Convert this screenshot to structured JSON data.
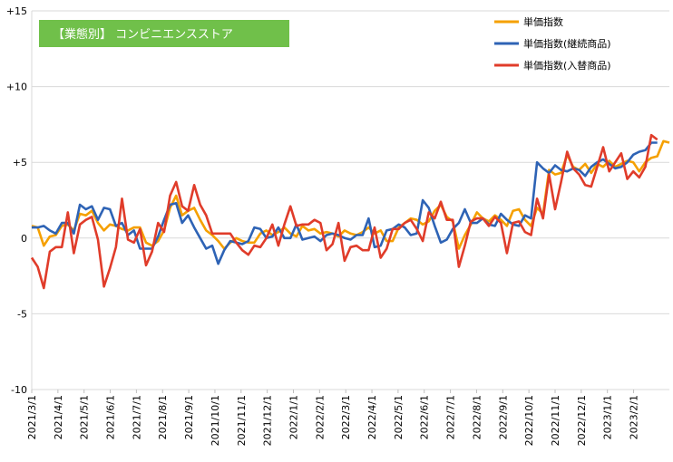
{
  "chart_data": {
    "type": "line",
    "title": "【業態別】 コンビニエンスストア",
    "title_bg": "#70c04a",
    "xlabel": "",
    "ylabel": "",
    "ylim": [
      -10,
      15
    ],
    "yticks": [
      -10,
      -5,
      0,
      5,
      10,
      15
    ],
    "ytick_labels": [
      "-10",
      "-5",
      "0",
      "+5",
      "+10",
      "+15"
    ],
    "grid": "horizontal",
    "legend_position": "top-right",
    "x_tick_labels": [
      "2021/3/1",
      "2021/4/1",
      "2021/5/1",
      "2021/6/1",
      "2021/7/1",
      "2021/8/1",
      "2021/9/1",
      "2021/10/1",
      "2021/11/1",
      "2021/12/1",
      "2022/1/1",
      "2022/2/1",
      "2022/3/1",
      "2022/4/1",
      "2022/5/1",
      "2022/6/1",
      "2022/7/1",
      "2022/8/1",
      "2022/9/1",
      "2022/10/1",
      "2022/11/1",
      "2022/12/1",
      "2023/1/1",
      "2023/2/1"
    ],
    "points_per_month": 4.35,
    "series": [
      {
        "name": "単価指数",
        "color": "#f5a000",
        "values": [
          0.8,
          0.7,
          -0.5,
          0.1,
          0.2,
          0.8,
          0.9,
          0.5,
          1.6,
          1.5,
          1.8,
          1.0,
          0.5,
          0.9,
          0.8,
          0.6,
          0.5,
          0.7,
          0.7,
          -0.3,
          -0.5,
          -0.2,
          0.5,
          2.0,
          2.8,
          1.5,
          1.8,
          2.0,
          1.2,
          0.5,
          0.2,
          -0.2,
          -0.7,
          -0.3,
          0.0,
          -0.2,
          -0.3,
          -0.3,
          0.3,
          0.5,
          0.2,
          0.4,
          0.7,
          0.3,
          0.1,
          0.8,
          0.5,
          0.6,
          0.3,
          0.4,
          0.3,
          0.1,
          0.5,
          0.3,
          0.2,
          0.4,
          0.7,
          0.3,
          0.5,
          -0.2,
          -0.2,
          0.7,
          1.0,
          1.3,
          1.2,
          0.9,
          1.1,
          1.8,
          2.2,
          1.4,
          1.1,
          -0.7,
          0.2,
          0.9,
          1.7,
          1.3,
          1.1,
          1.5,
          1.2,
          0.8,
          1.8,
          1.9,
          1.2,
          0.8,
          2.0,
          1.6,
          4.5,
          4.2,
          4.3,
          5.5,
          4.7,
          4.5,
          4.9,
          4.3,
          4.9,
          4.7,
          5.1,
          4.7,
          4.9,
          5.1,
          5.0,
          4.4,
          5.0,
          5.3,
          5.4,
          6.4,
          6.3
        ]
      },
      {
        "name": "単価指数(継続商品)",
        "color": "#2e63b5",
        "values": [
          0.7,
          0.7,
          0.8,
          0.5,
          0.3,
          1.0,
          1.0,
          0.3,
          2.2,
          1.9,
          2.1,
          1.2,
          2.0,
          1.9,
          0.8,
          1.0,
          0.2,
          0.5,
          -0.7,
          -0.7,
          -0.7,
          0.1,
          1.2,
          2.2,
          2.3,
          1.0,
          1.5,
          0.7,
          0.0,
          -0.7,
          -0.5,
          -1.7,
          -0.8,
          -0.2,
          -0.3,
          -0.4,
          -0.2,
          0.7,
          0.6,
          0.0,
          0.1,
          0.7,
          0.0,
          0.0,
          0.9,
          -0.1,
          0.0,
          0.1,
          -0.2,
          0.2,
          0.3,
          0.2,
          0.0,
          -0.1,
          0.2,
          0.2,
          1.3,
          -0.6,
          -0.5,
          0.5,
          0.6,
          0.9,
          0.7,
          0.2,
          0.3,
          2.5,
          2.0,
          0.8,
          -0.3,
          -0.1,
          0.6,
          1.0,
          1.9,
          1.0,
          1.0,
          1.3,
          0.9,
          0.8,
          1.6,
          1.2,
          0.9,
          0.8,
          1.5,
          1.3,
          5.0,
          4.6,
          4.3,
          4.8,
          4.5,
          4.4,
          4.6,
          4.5,
          4.1,
          4.7,
          5.0,
          5.2,
          4.9,
          4.6,
          4.7,
          5.0,
          5.5,
          5.7,
          5.8,
          6.3,
          6.3
        ]
      },
      {
        "name": "単価指数(入替商品)",
        "color": "#e03c2a",
        "values": [
          -1.3,
          -1.9,
          -3.3,
          -0.9,
          -0.6,
          -0.6,
          1.7,
          -1.0,
          0.9,
          1.2,
          1.4,
          -0.1,
          -3.2,
          -2.0,
          -0.6,
          2.6,
          -0.1,
          -0.3,
          0.6,
          -1.8,
          -0.9,
          1.0,
          0.4,
          2.8,
          3.7,
          2.1,
          1.8,
          3.5,
          2.2,
          1.5,
          0.3,
          0.3,
          0.3,
          0.3,
          -0.3,
          -0.8,
          -1.1,
          -0.5,
          -0.6,
          0.0,
          0.9,
          -0.5,
          0.9,
          2.1,
          0.8,
          0.9,
          0.9,
          1.2,
          1.0,
          -0.8,
          -0.4,
          1.0,
          -1.5,
          -0.6,
          -0.5,
          -0.8,
          -0.8,
          0.7,
          -1.3,
          -0.7,
          0.6,
          0.6,
          1.0,
          1.2,
          0.6,
          -0.2,
          1.7,
          1.3,
          2.4,
          1.2,
          1.2,
          -1.9,
          -0.5,
          1.1,
          1.3,
          1.3,
          0.8,
          1.4,
          1.0,
          -1.0,
          1.0,
          1.1,
          0.4,
          0.2,
          2.6,
          1.3,
          4.2,
          1.9,
          3.7,
          5.7,
          4.6,
          4.2,
          3.5,
          3.4,
          4.7,
          6.0,
          4.4,
          5.0,
          5.6,
          3.9,
          4.4,
          4.0,
          4.7,
          6.8,
          6.5
        ]
      }
    ]
  }
}
